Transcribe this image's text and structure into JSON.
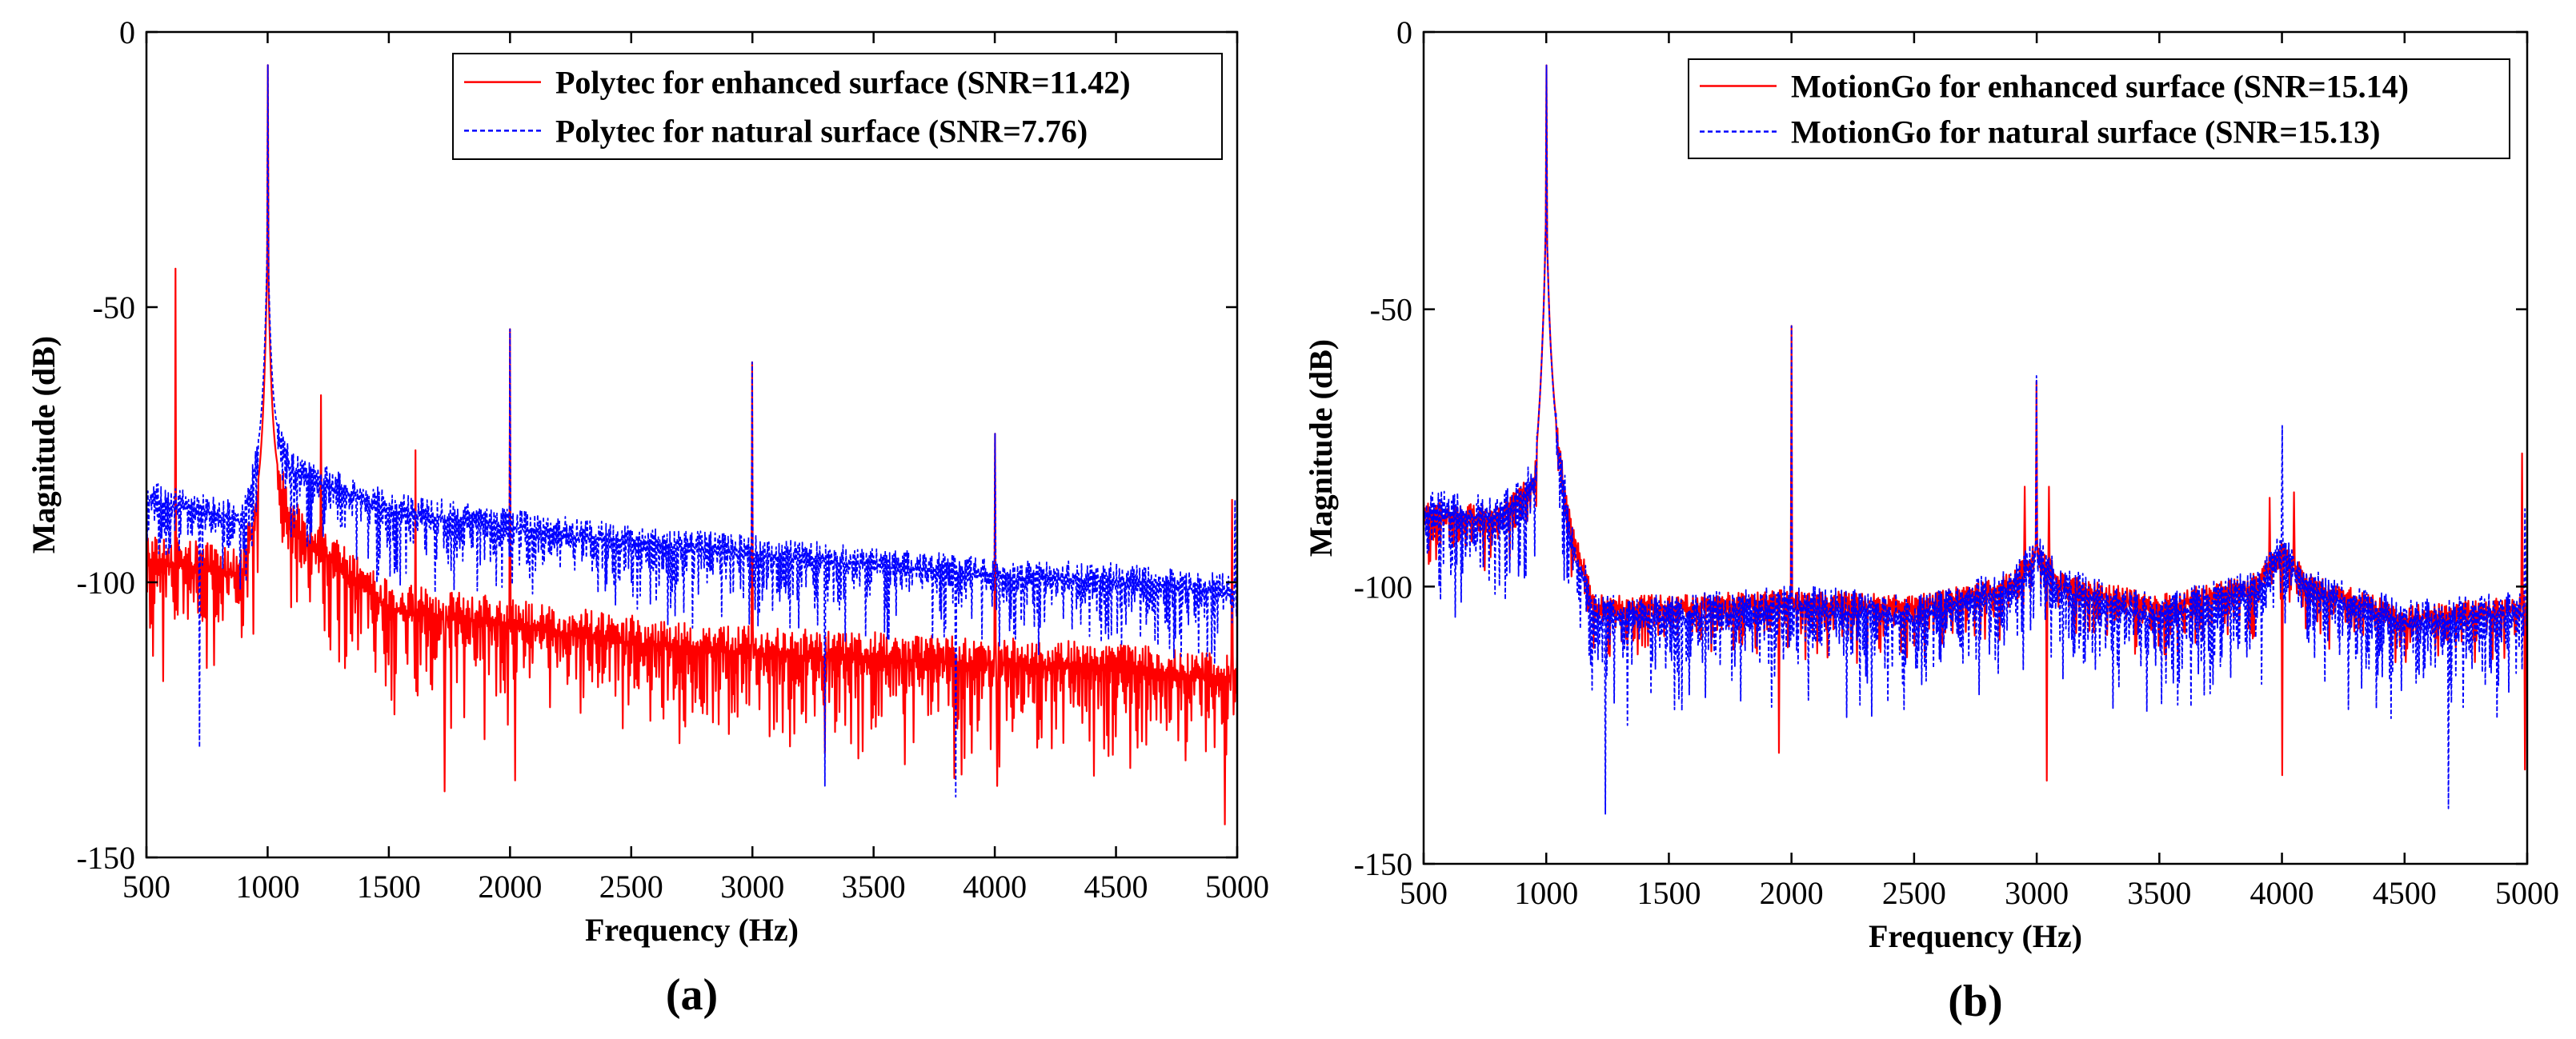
{
  "chart_data": [
    {
      "type": "line",
      "panel_label": "(a)",
      "xlabel": "Frequency (Hz)",
      "ylabel": "Magnitude (dB)",
      "xlim": [
        500,
        5000
      ],
      "ylim": [
        -150,
        0
      ],
      "xticks": [
        "500",
        "1000",
        "1500",
        "2000",
        "2500",
        "3000",
        "3500",
        "4000",
        "4500",
        "5000"
      ],
      "yticks": [
        "0",
        "-50",
        "-100",
        "-150"
      ],
      "legend_position": "top-right",
      "series": [
        {
          "name": "Polytec for enhanced surface (SNR=11.42)",
          "color": "#ff0000",
          "style": "solid",
          "noise_floor": [
            [
              500,
              -96
            ],
            [
              900,
              -99
            ],
            [
              1000,
              -75
            ],
            [
              1100,
              -90
            ],
            [
              1500,
              -105
            ],
            [
              2000,
              -108
            ],
            [
              2500,
              -111
            ],
            [
              3000,
              -113
            ],
            [
              3500,
              -114
            ],
            [
              4000,
              -115
            ],
            [
              4500,
              -116
            ],
            [
              5000,
              -118
            ]
          ],
          "noise_amplitude": 10,
          "peaks": [
            [
              620,
              -43
            ],
            [
              1000,
              -6
            ],
            [
              1220,
              -66
            ],
            [
              1610,
              -76
            ],
            [
              2000,
              -54
            ],
            [
              3000,
              -60
            ],
            [
              4000,
              -73
            ],
            [
              4980,
              -85
            ]
          ],
          "dips": [
            [
              1730,
              -138
            ],
            [
              2020,
              -136
            ],
            [
              3300,
              -131
            ],
            [
              4010,
              -137
            ],
            [
              4950,
              -144
            ]
          ]
        },
        {
          "name": "Polytec for natural surface (SNR=7.76)",
          "color": "#0000ff",
          "style": "dashed",
          "noise_floor": [
            [
              500,
              -85
            ],
            [
              900,
              -89
            ],
            [
              1000,
              -70
            ],
            [
              1100,
              -80
            ],
            [
              1500,
              -87
            ],
            [
              2000,
              -90
            ],
            [
              2500,
              -93
            ],
            [
              3000,
              -95
            ],
            [
              3500,
              -97
            ],
            [
              4000,
              -99
            ],
            [
              4500,
              -100
            ],
            [
              5000,
              -102
            ]
          ],
          "noise_amplitude": 7,
          "peaks": [
            [
              1000,
              -6
            ],
            [
              2000,
              -54
            ],
            [
              3000,
              -60
            ],
            [
              4000,
              -73
            ],
            [
              4990,
              -85
            ]
          ],
          "dips": [
            [
              720,
              -130
            ],
            [
              3300,
              -137
            ],
            [
              3840,
              -139
            ]
          ]
        }
      ]
    },
    {
      "type": "line",
      "panel_label": "(b)",
      "xlabel": "Frequency (Hz)",
      "ylabel": "Magnitude (dB)",
      "xlim": [
        500,
        5000
      ],
      "ylim": [
        -150,
        0
      ],
      "xticks": [
        "500",
        "1000",
        "1500",
        "2000",
        "2500",
        "3000",
        "3500",
        "4000",
        "4500",
        "5000"
      ],
      "yticks": [
        "0",
        "-50",
        "-100",
        "-150"
      ],
      "legend_position": "top-right",
      "series": [
        {
          "name": "MotionGo for enhanced surface (SNR=15.14)",
          "color": "#ff0000",
          "style": "solid",
          "noise_floor": [
            [
              500,
              -87
            ],
            [
              800,
              -88
            ],
            [
              950,
              -82
            ],
            [
              1000,
              -60
            ],
            [
              1100,
              -90
            ],
            [
              1200,
              -104
            ],
            [
              1500,
              -104
            ],
            [
              2000,
              -103
            ],
            [
              2500,
              -104
            ],
            [
              2900,
              -100
            ],
            [
              3000,
              -94
            ],
            [
              3100,
              -100
            ],
            [
              3500,
              -104
            ],
            [
              3900,
              -100
            ],
            [
              4000,
              -93
            ],
            [
              4100,
              -100
            ],
            [
              4500,
              -106
            ],
            [
              5000,
              -104
            ]
          ],
          "noise_amplitude": 5,
          "peaks": [
            [
              1000,
              -6
            ],
            [
              1120,
              -92
            ],
            [
              1950,
              -91
            ],
            [
              2000,
              -53
            ],
            [
              2950,
              -82
            ],
            [
              3000,
              -63
            ],
            [
              3050,
              -82
            ],
            [
              3950,
              -84
            ],
            [
              4000,
              -71
            ],
            [
              4050,
              -83
            ],
            [
              4980,
              -76
            ]
          ],
          "dips": [
            [
              1950,
              -130
            ],
            [
              3040,
              -135
            ],
            [
              4000,
              -134
            ],
            [
              4990,
              -133
            ]
          ]
        },
        {
          "name": "MotionGo for natural surface (SNR=15.13)",
          "color": "#0000ff",
          "style": "dashed",
          "noise_floor": [
            [
              500,
              -87
            ],
            [
              800,
              -88
            ],
            [
              950,
              -82
            ],
            [
              1000,
              -60
            ],
            [
              1100,
              -92
            ],
            [
              1200,
              -106
            ],
            [
              1500,
              -106
            ],
            [
              2000,
              -104
            ],
            [
              2500,
              -106
            ],
            [
              2900,
              -101
            ],
            [
              3000,
              -95
            ],
            [
              3100,
              -101
            ],
            [
              3500,
              -106
            ],
            [
              3900,
              -101
            ],
            [
              4000,
              -94
            ],
            [
              4100,
              -101
            ],
            [
              4500,
              -107
            ],
            [
              5000,
              -105
            ]
          ],
          "noise_amplitude": 9,
          "peaks": [
            [
              1000,
              -6
            ],
            [
              2000,
              -53
            ],
            [
              3000,
              -62
            ],
            [
              4000,
              -71
            ],
            [
              4990,
              -86
            ]
          ],
          "dips": [
            [
              1240,
              -141
            ],
            [
              1330,
              -125
            ],
            [
              4680,
              -140
            ]
          ]
        }
      ]
    }
  ]
}
